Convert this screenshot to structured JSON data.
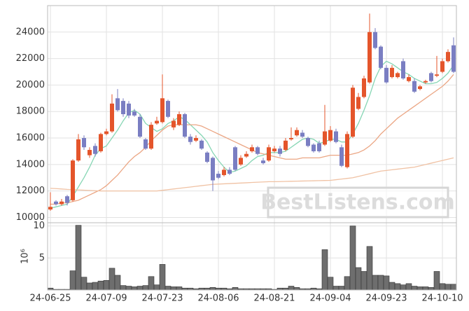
{
  "chart_data": [
    {
      "type": "candlestick",
      "watermark": "BestListens.com",
      "categories": [
        "24-06-25",
        null,
        null,
        null,
        null,
        null,
        null,
        null,
        null,
        null,
        "24-07-09",
        null,
        null,
        null,
        null,
        null,
        null,
        null,
        null,
        null,
        "24-07-23",
        null,
        null,
        null,
        null,
        null,
        null,
        null,
        null,
        null,
        "24-08-06",
        null,
        null,
        null,
        null,
        null,
        null,
        null,
        null,
        null,
        "24-08-21",
        null,
        null,
        null,
        null,
        null,
        null,
        null,
        null,
        null,
        "24-09-04",
        null,
        null,
        null,
        null,
        null,
        null,
        null,
        null,
        null,
        "24-09-23",
        null,
        null,
        null,
        null,
        null,
        null,
        null,
        null,
        null,
        "24-10-10",
        null,
        null
      ],
      "open": [
        10600,
        11200,
        11000,
        11600,
        11300,
        14300,
        16000,
        14700,
        15400,
        15000,
        16300,
        16500,
        19000,
        18800,
        18600,
        18000,
        17600,
        15900,
        15200,
        17100,
        17200,
        18800,
        16800,
        17000,
        17800,
        16100,
        15800,
        15800,
        14900,
        14500,
        13300,
        13200,
        13600,
        15300,
        14000,
        14600,
        15000,
        15300,
        14300,
        14300,
        15000,
        15200,
        15100,
        15900,
        16200,
        16400,
        16000,
        15500,
        15600,
        15500,
        15800,
        16500,
        15300,
        13800,
        16100,
        18200,
        19100,
        20200,
        24000,
        22900,
        21300,
        20600,
        20600,
        21800,
        20300,
        20300,
        19700,
        20200,
        20900,
        20700,
        21000,
        21800,
        23000
      ],
      "close": [
        10800,
        11000,
        11200,
        11100,
        14300,
        15900,
        15300,
        15100,
        14800,
        16300,
        16500,
        18600,
        18100,
        17800,
        17700,
        17700,
        16100,
        15200,
        17000,
        17300,
        19000,
        17600,
        17300,
        17800,
        16100,
        15700,
        16000,
        15200,
        14200,
        12800,
        13000,
        13600,
        13300,
        13600,
        14500,
        14800,
        15300,
        14800,
        14100,
        15300,
        15200,
        14800,
        15800,
        16000,
        16600,
        16100,
        15400,
        15000,
        15000,
        16500,
        16600,
        15700,
        13900,
        16300,
        19800,
        19100,
        20500,
        24000,
        22800,
        21300,
        20200,
        21300,
        20900,
        20500,
        20600,
        19500,
        19900,
        20300,
        20300,
        20800,
        21800,
        22500,
        21000
      ],
      "high": [
        11900,
        11300,
        11400,
        11700,
        14400,
        16300,
        16200,
        15300,
        15600,
        16400,
        16700,
        19300,
        19700,
        19000,
        18800,
        18200,
        17800,
        16000,
        17200,
        17600,
        20800,
        18900,
        17500,
        18000,
        17900,
        16300,
        16200,
        15900,
        15000,
        14600,
        13500,
        13800,
        13800,
        15400,
        14700,
        15000,
        15500,
        15400,
        14500,
        15500,
        15400,
        15400,
        16000,
        16800,
        16800,
        16600,
        16100,
        15600,
        15800,
        18500,
        16900,
        16700,
        15500,
        16500,
        20000,
        19400,
        20700,
        25400,
        24300,
        23000,
        21500,
        21500,
        21000,
        22000,
        20800,
        20500,
        20000,
        20400,
        21000,
        22200,
        22000,
        22700,
        23600
      ],
      "low": [
        10500,
        10900,
        10900,
        10900,
        11200,
        14200,
        15100,
        14500,
        14600,
        14900,
        16200,
        16400,
        18000,
        17600,
        17500,
        17600,
        16000,
        15100,
        15100,
        17000,
        17100,
        17500,
        16600,
        16900,
        16000,
        15500,
        15700,
        15100,
        14100,
        12000,
        12900,
        13100,
        13200,
        13500,
        13900,
        14500,
        14900,
        14700,
        14000,
        14200,
        14900,
        14600,
        15000,
        15800,
        16100,
        16000,
        15300,
        14900,
        14900,
        15400,
        15700,
        15600,
        13800,
        13700,
        16000,
        18100,
        19000,
        20100,
        22700,
        21200,
        20100,
        20500,
        20500,
        20400,
        20200,
        19400,
        19600,
        20100,
        20200,
        20600,
        20900,
        21700,
        20900
      ],
      "up_color": "#e4552b",
      "down_color": "#7a7ec2",
      "lines": [
        {
          "color": "#86d6b4",
          "values": [
            10700,
            10800,
            10900,
            11000,
            11600,
            12300,
            13000,
            13800,
            14700,
            15200,
            15400,
            16000,
            16600,
            17300,
            17900,
            18100,
            17800,
            17100,
            16800,
            16500,
            16700,
            17100,
            17300,
            17600,
            17400,
            17000,
            16600,
            16200,
            15700,
            14900,
            14300,
            13800,
            13400,
            13500,
            13700,
            13900,
            14300,
            14600,
            14700,
            14900,
            14900,
            14900,
            15000,
            15300,
            15600,
            15900,
            16000,
            15900,
            15600,
            15700,
            15900,
            15900,
            15700,
            15700,
            16300,
            17100,
            18100,
            19200,
            20500,
            21400,
            21800,
            21600,
            21300,
            21000,
            20800,
            20500,
            20300,
            20100,
            20100,
            20200,
            20500,
            20900,
            21500
          ]
        },
        {
          "color": "#eba684",
          "values": [
            11000,
            11000,
            11100,
            11100,
            11200,
            11300,
            11500,
            11700,
            11900,
            12100,
            12400,
            12800,
            13200,
            13700,
            14200,
            14600,
            14900,
            15300,
            15800,
            16200,
            16600,
            16900,
            17000,
            17000,
            17000,
            17000,
            17000,
            16900,
            16700,
            16500,
            16300,
            16100,
            15900,
            15700,
            15500,
            15300,
            15100,
            14900,
            14800,
            14700,
            14600,
            14500,
            14400,
            14400,
            14400,
            14500,
            14500,
            14500,
            14500,
            14600,
            14700,
            14700,
            14700,
            14700,
            14800,
            14900,
            15100,
            15400,
            15800,
            16300,
            16700,
            17100,
            17500,
            17800,
            18100,
            18400,
            18700,
            19000,
            19300,
            19600,
            19900,
            20300,
            20800
          ]
        },
        {
          "color": "#f0c2a4",
          "values": [
            12200,
            12180,
            12150,
            12120,
            12100,
            12080,
            12060,
            12040,
            12020,
            12000,
            12000,
            12000,
            12000,
            12000,
            12000,
            12000,
            12000,
            12000,
            12000,
            12000,
            12050,
            12100,
            12150,
            12200,
            12250,
            12300,
            12350,
            12400,
            12450,
            12500,
            12520,
            12540,
            12560,
            12580,
            12600,
            12620,
            12640,
            12660,
            12680,
            12700,
            12700,
            12710,
            12720,
            12730,
            12740,
            12750,
            12760,
            12770,
            12780,
            12790,
            12800,
            12850,
            12900,
            12950,
            13000,
            13100,
            13200,
            13300,
            13400,
            13500,
            13550,
            13600,
            13650,
            13700,
            13750,
            13800,
            13900,
            14000,
            14100,
            14200,
            14300,
            14400,
            14500
          ]
        }
      ],
      "ylim": [
        9600,
        26000
      ],
      "yticks": [
        10000,
        12000,
        14000,
        16000,
        18000,
        20000,
        22000,
        24000
      ],
      "grid": true
    },
    {
      "type": "bar",
      "ylabel": "10⁶",
      "color": "#6e6e6e",
      "values": [
        0.3,
        0.1,
        0.1,
        0.1,
        3.0,
        10.1,
        2.0,
        1.1,
        1.2,
        1.4,
        1.5,
        3.4,
        2.3,
        0.7,
        0.6,
        0.5,
        0.6,
        0.7,
        2.1,
        0.8,
        4.0,
        0.6,
        0.5,
        0.5,
        0.3,
        0.3,
        0.2,
        0.3,
        0.3,
        0.4,
        0.3,
        0.3,
        0.2,
        0.4,
        0.2,
        0.2,
        0.2,
        0.2,
        0.2,
        0.2,
        0.1,
        0.3,
        0.3,
        0.6,
        0.4,
        0.2,
        0.2,
        0.3,
        0.2,
        6.3,
        2.0,
        0.6,
        0.6,
        2.1,
        10.0,
        3.5,
        2.9,
        6.8,
        2.3,
        2.3,
        2.2,
        1.2,
        1.0,
        0.8,
        1.0,
        0.6,
        0.5,
        0.5,
        0.4,
        2.9,
        1.0,
        0.9,
        0.9
      ],
      "ylim": [
        0,
        10.5
      ],
      "yticks": [
        5,
        10
      ],
      "grid": true
    }
  ]
}
